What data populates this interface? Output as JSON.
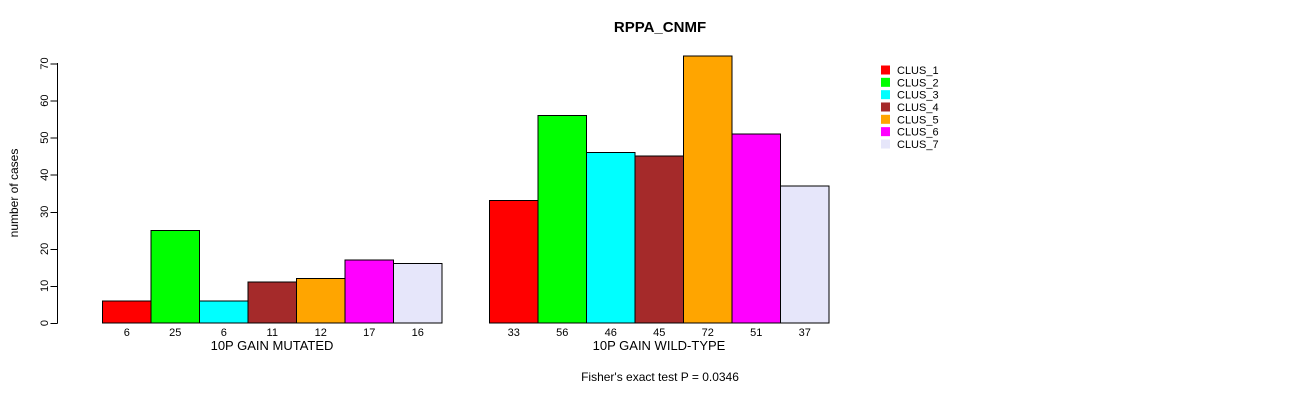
{
  "chart_data": {
    "type": "bar",
    "title": "RPPA_CNMF",
    "ylabel": "number of cases",
    "xlabel": "",
    "ylim": [
      0,
      70
    ],
    "yticks": [
      0,
      10,
      20,
      30,
      40,
      50,
      60,
      70
    ],
    "grid": false,
    "legend_position": "right",
    "bar_value_labels": true,
    "categories": [
      "10P GAIN MUTATED",
      "10P GAIN WILD-TYPE"
    ],
    "series": [
      {
        "name": "CLUS_1",
        "color": "#ff0000",
        "values": [
          6,
          33
        ]
      },
      {
        "name": "CLUS_2",
        "color": "#00ff00",
        "values": [
          25,
          56
        ]
      },
      {
        "name": "CLUS_3",
        "color": "#00ffff",
        "values": [
          6,
          46
        ]
      },
      {
        "name": "CLUS_4",
        "color": "#a52a2a",
        "values": [
          11,
          45
        ]
      },
      {
        "name": "CLUS_5",
        "color": "#ffa500",
        "values": [
          12,
          72
        ]
      },
      {
        "name": "CLUS_6",
        "color": "#ff00ff",
        "values": [
          17,
          51
        ]
      },
      {
        "name": "CLUS_7",
        "color": "#e6e6fa",
        "values": [
          16,
          37
        ]
      }
    ],
    "annotation": "Fisher's exact test P = 0.0346",
    "colors": {
      "bar_border": "#000000",
      "axis": "#000000",
      "background": "#ffffff"
    }
  }
}
